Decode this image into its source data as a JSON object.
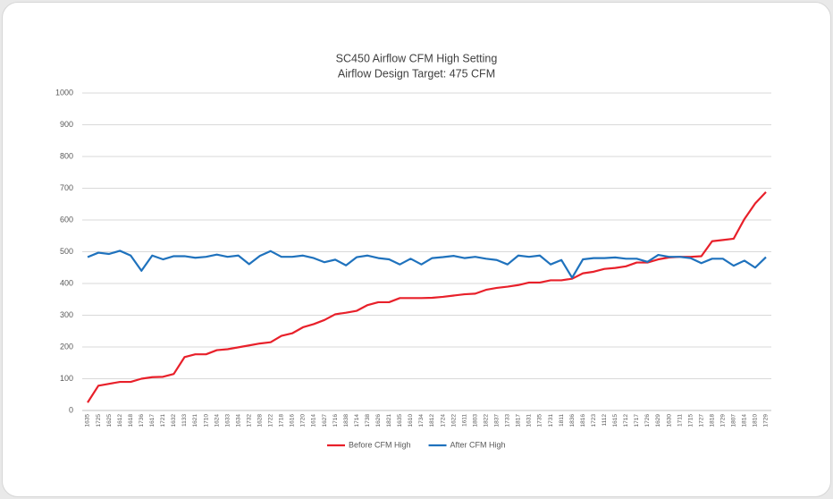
{
  "chart_data": {
    "type": "line",
    "title": "SC450 Airflow CFM High Setting",
    "subtitle": "Airflow Design Target: 475 CFM",
    "categories": [
      "1635",
      "1725",
      "1625",
      "1612",
      "1618",
      "1736",
      "1617",
      "1721",
      "1632",
      "1133",
      "1621",
      "1710",
      "1624",
      "1633",
      "1634",
      "1732",
      "1628",
      "1722",
      "1718",
      "1616",
      "1720",
      "1614",
      "1627",
      "1716",
      "1838",
      "1714",
      "1738",
      "1626",
      "1821",
      "1635",
      "1610",
      "1734",
      "1812",
      "1724",
      "1622",
      "1611",
      "1803",
      "1822",
      "1837",
      "1733",
      "1817",
      "1631",
      "1735",
      "1731",
      "1811",
      "1836",
      "1816",
      "1723",
      "1112",
      "1615",
      "1712",
      "1717",
      "1726",
      "1629",
      "1630",
      "1711",
      "1715",
      "1727",
      "1818",
      "1729",
      "1807",
      "1814",
      "1810",
      "1729"
    ],
    "series": [
      {
        "name": "Before CFM High",
        "color": "#e8202a",
        "values": [
          25,
          78,
          84,
          90,
          90,
          100,
          105,
          106,
          115,
          168,
          177,
          177,
          190,
          193,
          199,
          205,
          211,
          215,
          235,
          243,
          262,
          272,
          285,
          303,
          308,
          314,
          332,
          341,
          341,
          354,
          354,
          354,
          355,
          358,
          362,
          366,
          368,
          380,
          386,
          390,
          395,
          403,
          403,
          410,
          410,
          415,
          432,
          437,
          446,
          449,
          454,
          466,
          466,
          476,
          482,
          484,
          484,
          486,
          533,
          537,
          541,
          603,
          652,
          688
        ]
      },
      {
        "name": "After CFM High",
        "color": "#1f72bd",
        "values": [
          483,
          497,
          493,
          503,
          488,
          440,
          488,
          476,
          486,
          486,
          481,
          484,
          491,
          484,
          488,
          461,
          487,
          502,
          484,
          484,
          488,
          480,
          467,
          475,
          457,
          483,
          488,
          480,
          476,
          460,
          478,
          460,
          480,
          483,
          487,
          480,
          484,
          478,
          474,
          460,
          488,
          484,
          488,
          460,
          474,
          418,
          476,
          480,
          480,
          482,
          478,
          478,
          468,
          490,
          484,
          484,
          480,
          464,
          478,
          478,
          456,
          472,
          450,
          483
        ]
      }
    ],
    "ylim": [
      0,
      1000
    ],
    "yticks": [
      0,
      100,
      200,
      300,
      400,
      500,
      600,
      700,
      800,
      900,
      1000
    ],
    "grid": true,
    "legend": "bottom"
  }
}
